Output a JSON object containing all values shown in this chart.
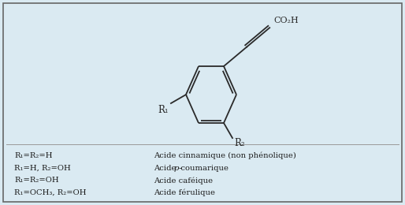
{
  "background_color": "#daeaf2",
  "border_color": "#666666",
  "text_color": "#1a1a1a",
  "structure_color": "#2a2a2a",
  "line_width": 1.3,
  "legend_rows_left": [
    "R₁=R₂=H",
    "R₁=H, R₂=OH",
    "R₁=R₂=OH",
    "R₁=OCH₃, R₂=OH"
  ],
  "legend_rows_right": [
    "Acide cinnamique (non phénolique)",
    "Acide p-coumarique",
    "Acide caféique",
    "Acide férulique"
  ]
}
